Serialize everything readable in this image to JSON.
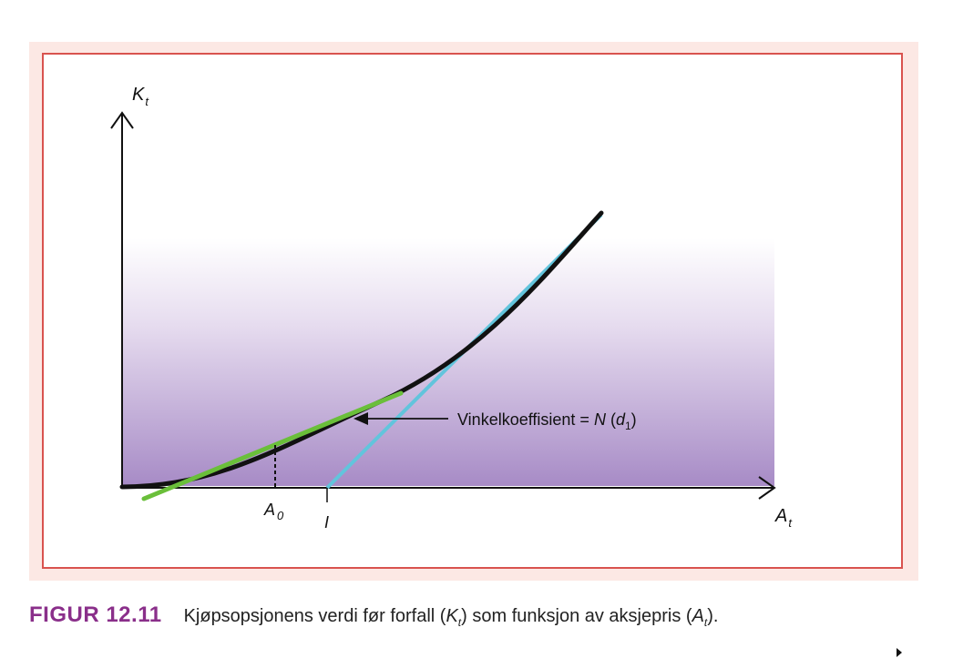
{
  "figure": {
    "y_axis_label": "K",
    "y_axis_sub": "t",
    "x_axis_label": "A",
    "x_axis_sub": "t",
    "tick_a0_label": "A",
    "tick_a0_sub": "0",
    "tick_i_label": "I",
    "annotation_prefix": "Vinkelkoeffisient = ",
    "annotation_n": "N",
    "annotation_open": " (",
    "annotation_d": "d",
    "annotation_d_sub": "1",
    "annotation_close": ")"
  },
  "caption": {
    "label": "FIGUR 12.11",
    "t1": "Kjøpsopsjonens verdi før forfall (",
    "k": "K",
    "k_sub": "t",
    "t2": ") som funksjon av aksjepris (",
    "a": "A",
    "a_sub": "t",
    "t3": ")."
  },
  "colors": {
    "panel_bg": "#fce8e4",
    "frame_border": "#d9534f",
    "curve": "#111111",
    "tangent": "#6abf3a",
    "intrinsic": "#62c4dc",
    "gradient_bottom": "#9a7fbe",
    "caption_label": "#8a2f8a"
  }
}
